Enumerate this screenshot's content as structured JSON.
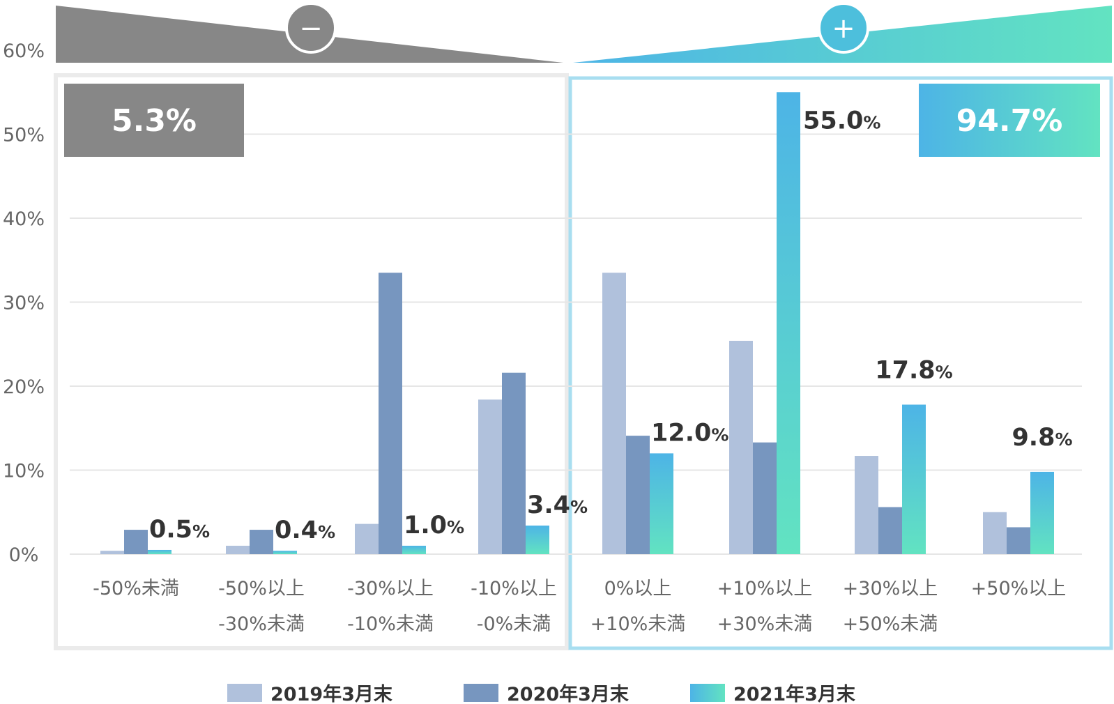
{
  "chart_data": {
    "type": "bar",
    "categories": [
      [
        "-50%未満"
      ],
      [
        "-50%以上",
        "-30%未満"
      ],
      [
        "-30%以上",
        "-10%未満"
      ],
      [
        "-10%以上",
        "-0%未満"
      ],
      [
        "0%以上",
        "+10%未満"
      ],
      [
        "+10%以上",
        "+30%未満"
      ],
      [
        "+30%以上",
        "+50%未満"
      ],
      [
        "+50%以上"
      ]
    ],
    "series": [
      {
        "name": "2019年3月末",
        "values": [
          0.4,
          1.0,
          3.6,
          18.4,
          33.5,
          25.4,
          11.7,
          5.0
        ]
      },
      {
        "name": "2020年3月末",
        "values": [
          2.9,
          2.9,
          33.5,
          21.6,
          14.1,
          13.3,
          5.6,
          3.2
        ]
      },
      {
        "name": "2021年3月末",
        "values": [
          0.5,
          0.4,
          1.0,
          3.4,
          12.0,
          55.0,
          17.8,
          9.8
        ]
      }
    ],
    "value_labels": [
      {
        "num": "0.5",
        "unit": "%"
      },
      {
        "num": "0.4",
        "unit": "%"
      },
      {
        "num": "1.0",
        "unit": "%"
      },
      {
        "num": "3.4",
        "unit": "%"
      },
      {
        "num": "12.0",
        "unit": "%"
      },
      {
        "num": "55.0",
        "unit": "%"
      },
      {
        "num": "17.8",
        "unit": "%"
      },
      {
        "num": "9.8",
        "unit": "%"
      }
    ],
    "y_ticks": [
      "0%",
      "10%",
      "20%",
      "30%",
      "40%",
      "50%",
      "60%"
    ],
    "ylim": [
      0,
      60
    ],
    "grid": true,
    "legend_position": "bottom-center",
    "groups": [
      {
        "sign": "−",
        "total": "5.3%",
        "categories": [
          0,
          1,
          2,
          3
        ]
      },
      {
        "sign": "+",
        "total": "94.7%",
        "categories": [
          4,
          5,
          6,
          7
        ]
      }
    ]
  },
  "colors": {
    "series_2019": "#b0c1dc",
    "series_2020": "#7796bf",
    "series_2021_top": "#4db4e6",
    "series_2021_bottom": "#62e3c1",
    "negative_gray": "#878787",
    "positive_blue": "#4db4e6",
    "positive_green": "#62e3c1",
    "negative_frame": "#ebebeb",
    "positive_frame": "#a8def0",
    "gridline": "#e6e6e6",
    "text_dark": "#333333",
    "text_axis": "#666666"
  }
}
